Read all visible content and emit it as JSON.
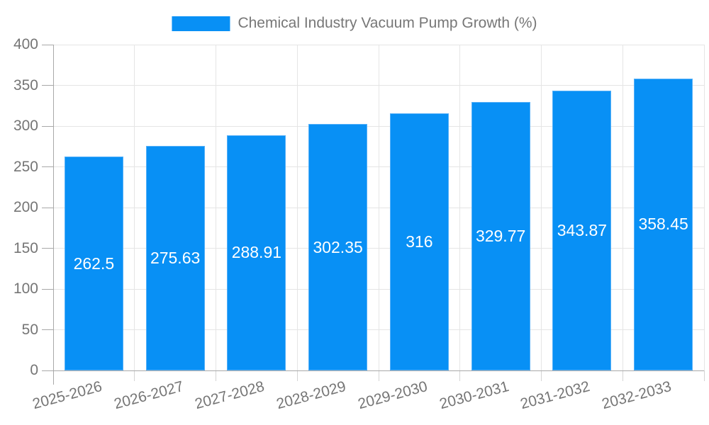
{
  "legend": {
    "label": "Chemical Industry Vacuum Pump Growth (%)"
  },
  "chart_data": {
    "type": "bar",
    "title": "Chemical Industry Vacuum Pump Growth (%)",
    "categories": [
      "2025-2026",
      "2026-2027",
      "2027-2028",
      "2028-2029",
      "2029-2030",
      "2030-2031",
      "2031-2032",
      "2032-2033"
    ],
    "values": [
      262.5,
      275.63,
      288.91,
      302.35,
      316,
      329.77,
      343.87,
      358.45
    ],
    "value_labels": [
      "262.5",
      "275.63",
      "288.91",
      "302.35",
      "316",
      "329.77",
      "343.87",
      "358.45"
    ],
    "ylabel": "",
    "xlabel": "",
    "ylim": [
      0,
      400
    ],
    "yticks": [
      0,
      50,
      100,
      150,
      200,
      250,
      300,
      350,
      400
    ],
    "grid": true,
    "legend_position": "top",
    "x_label_rotation_deg": -15,
    "colors": {
      "bar": "#0890f5",
      "bar_border": "#56b0f8",
      "grid": "#e5e5e5",
      "light_tick": "#d4d4d4",
      "axis": "#a8a8a8",
      "text": "#757575",
      "value_label": "#ffffff"
    }
  }
}
